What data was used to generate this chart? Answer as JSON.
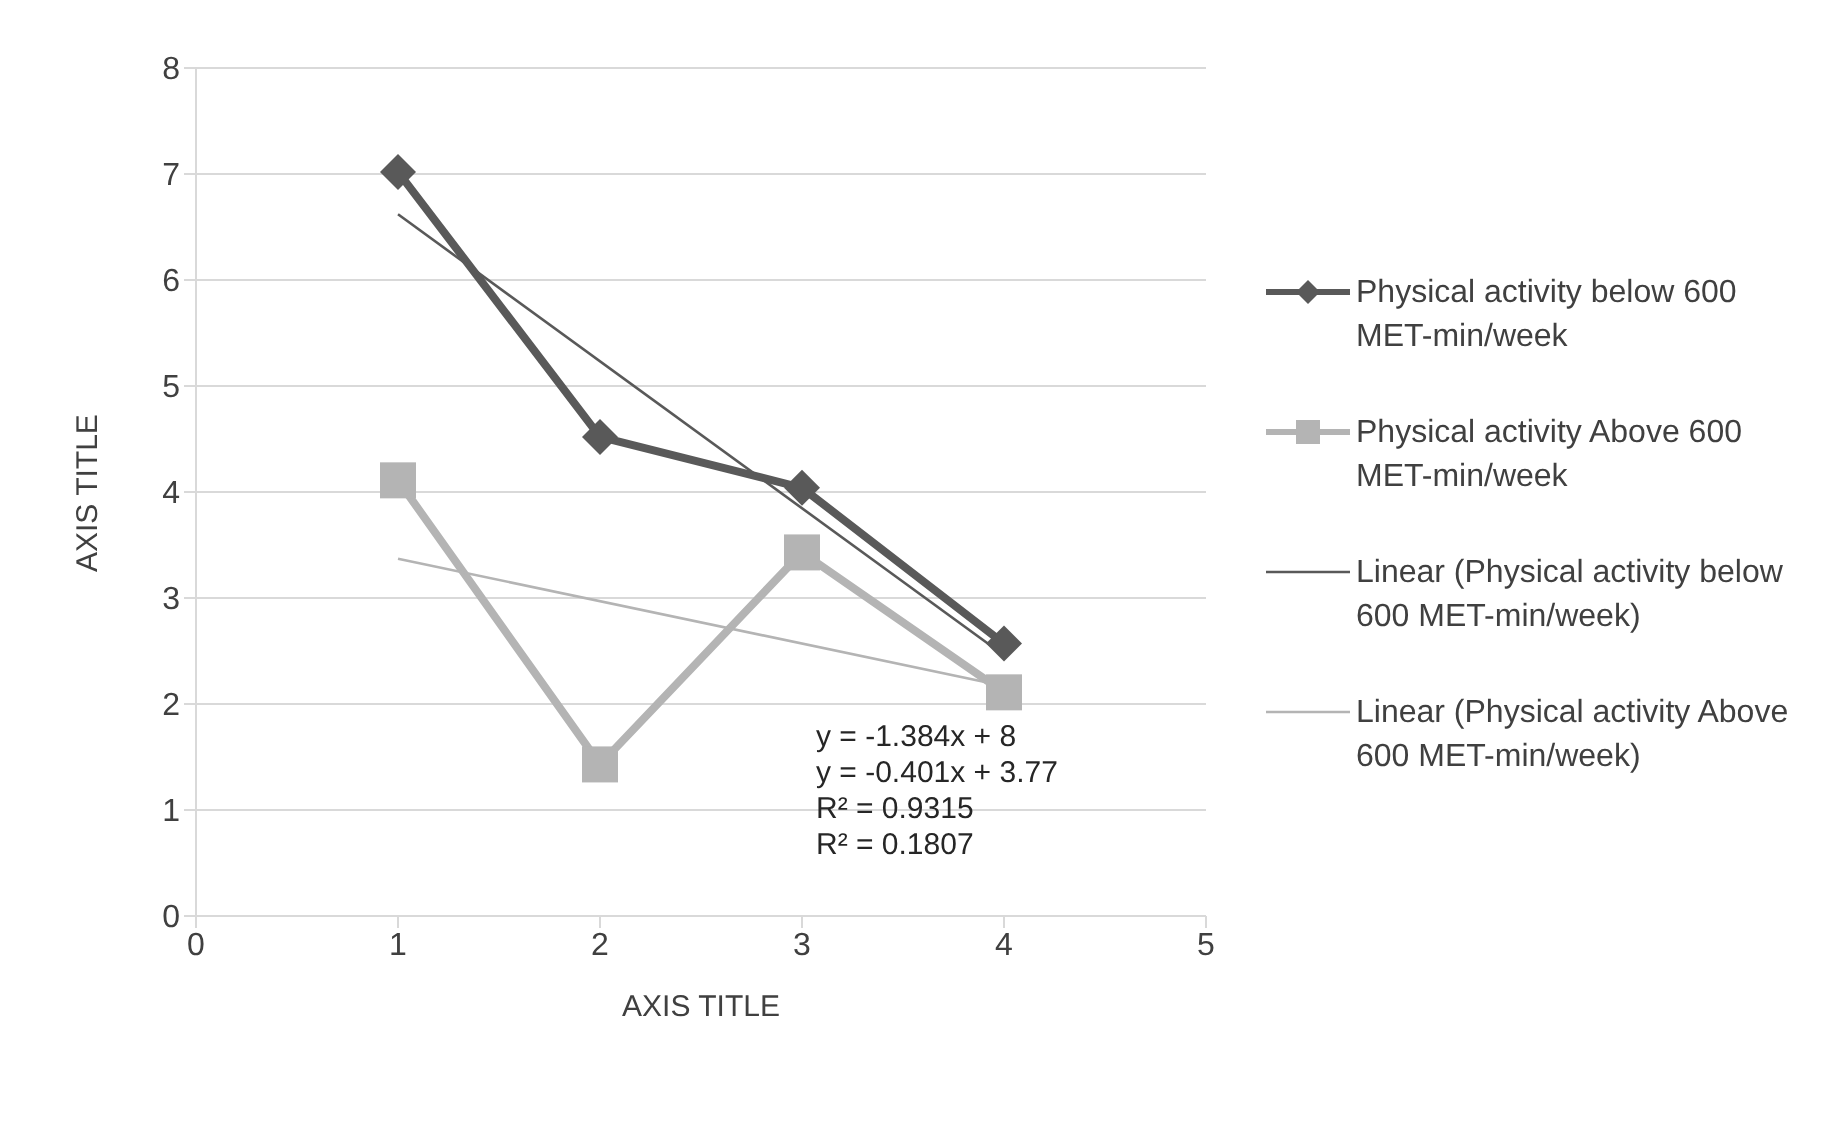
{
  "chart_data": {
    "type": "line",
    "xlabel": "AXIS TITLE",
    "ylabel": "AXIS TITLE",
    "xlim": [
      0,
      5
    ],
    "xticks": [
      0,
      1,
      2,
      3,
      4,
      5
    ],
    "ylim": [
      0,
      8
    ],
    "yticks": [
      0,
      1,
      2,
      3,
      4,
      5,
      6,
      7,
      8
    ],
    "grid": "y",
    "legend": "right",
    "series": [
      {
        "name": "Physical activity below 600 MET-min/week",
        "color": "#595959",
        "x": [
          1,
          2,
          3,
          4
        ],
        "values": [
          7.02,
          4.52,
          4.04,
          2.57
        ],
        "marker": "diamond"
      },
      {
        "name": "Physical activity Above 600 MET-min/week",
        "color": "#b4b4b4",
        "x": [
          1,
          2,
          3,
          4
        ],
        "values": [
          4.11,
          1.43,
          3.43,
          2.11
        ],
        "marker": "square"
      },
      {
        "name": "Linear (Physical activity below 600 MET-min/week)",
        "color": "#595959",
        "x": [
          1,
          4
        ],
        "values": [
          6.62,
          2.46
        ],
        "marker": "none"
      },
      {
        "name": "Linear (Physical activity Above 600 MET-min/week)",
        "color": "#b4b4b4",
        "x": [
          1,
          4
        ],
        "values": [
          3.37,
          2.17
        ],
        "marker": "none"
      }
    ],
    "annotations": [
      "y = -1.384x + 8",
      "y = -0.401x + 3.77",
      "R² = 0.9315",
      "R² = 0.1807"
    ]
  }
}
